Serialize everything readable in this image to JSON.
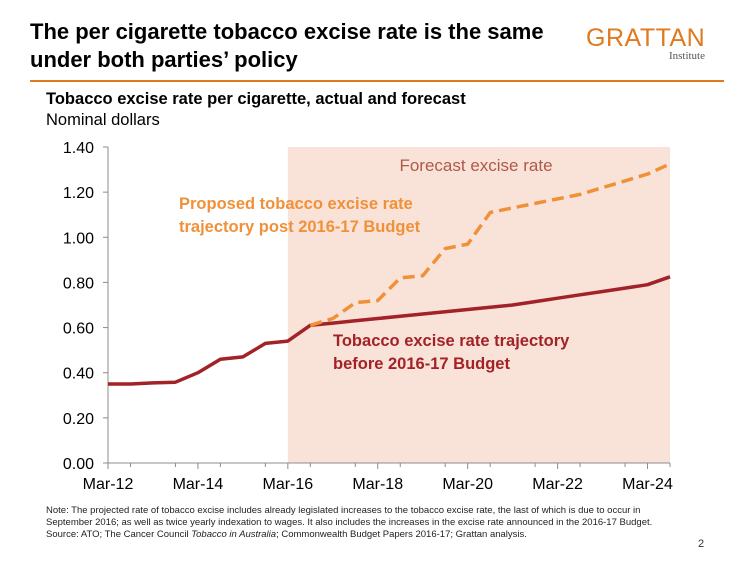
{
  "header": {
    "title": "The per cigarette tobacco excise rate is the same under both parties’ policy",
    "logo_main": "GRATTAN",
    "logo_sub": "Institute"
  },
  "chart_meta": {
    "subtitle": "Tobacco excise rate per cigarette, actual and forecast",
    "units": "Nominal dollars"
  },
  "chart_data": {
    "type": "line",
    "x_ticks": [
      "Mar-12",
      "Mar-14",
      "Mar-16",
      "Mar-18",
      "Mar-20",
      "Mar-22",
      "Mar-24"
    ],
    "xlim": [
      "Mar-12",
      "Sep-24"
    ],
    "ylim": [
      0,
      1.4
    ],
    "y_ticks": [
      "0.00",
      "0.20",
      "0.40",
      "0.60",
      "0.80",
      "1.00",
      "1.20",
      "1.40"
    ],
    "grid": false,
    "forecast_shading": {
      "from": "Mar-16",
      "to": "Sep-24",
      "label": "Forecast excise rate",
      "color": "#f9e3d8"
    },
    "series": [
      {
        "key": "before_budget",
        "label": "Tobacco excise rate trajectory before 2016-17 Budget",
        "color": "#a32228",
        "style": "solid",
        "points": [
          [
            "Mar-12",
            0.35
          ],
          [
            "Sep-12",
            0.35
          ],
          [
            "Mar-13",
            0.355
          ],
          [
            "Sep-13",
            0.358
          ],
          [
            "Mar-14",
            0.4
          ],
          [
            "Sep-14",
            0.46
          ],
          [
            "Mar-15",
            0.47
          ],
          [
            "Sep-15",
            0.53
          ],
          [
            "Mar-16",
            0.54
          ],
          [
            "Sep-16",
            0.61
          ],
          [
            "Mar-17",
            0.62
          ],
          [
            "Sep-17",
            0.63
          ],
          [
            "Mar-18",
            0.64
          ],
          [
            "Sep-18",
            0.65
          ],
          [
            "Mar-19",
            0.66
          ],
          [
            "Sep-19",
            0.67
          ],
          [
            "Mar-20",
            0.68
          ],
          [
            "Sep-20",
            0.69
          ],
          [
            "Mar-21",
            0.7
          ],
          [
            "Sep-21",
            0.715
          ],
          [
            "Mar-22",
            0.73
          ],
          [
            "Sep-22",
            0.745
          ],
          [
            "Mar-23",
            0.76
          ],
          [
            "Sep-23",
            0.775
          ],
          [
            "Mar-24",
            0.79
          ],
          [
            "Sep-24",
            0.825
          ]
        ]
      },
      {
        "key": "post_budget",
        "label": "Proposed tobacco excise rate trajectory post 2016-17 Budget",
        "color": "#f0913a",
        "style": "dashed",
        "points": [
          [
            "Sep-16",
            0.61
          ],
          [
            "Mar-17",
            0.64
          ],
          [
            "Sep-17",
            0.71
          ],
          [
            "Mar-18",
            0.72
          ],
          [
            "Sep-18",
            0.82
          ],
          [
            "Mar-19",
            0.83
          ],
          [
            "Sep-19",
            0.95
          ],
          [
            "Mar-20",
            0.97
          ],
          [
            "Sep-20",
            1.11
          ],
          [
            "Mar-21",
            1.13
          ],
          [
            "Sep-21",
            1.15
          ],
          [
            "Mar-22",
            1.17
          ],
          [
            "Sep-22",
            1.19
          ],
          [
            "Mar-23",
            1.22
          ],
          [
            "Sep-23",
            1.25
          ],
          [
            "Mar-24",
            1.28
          ],
          [
            "Sep-24",
            1.325
          ]
        ]
      }
    ]
  },
  "footer": {
    "note_lines": [
      "Note: The projected rate of tobacco excise includes already legislated increases to the tobacco excise rate, the last of which is due to occur in",
      "September 2016; as well as twice yearly indexation to wages. It also includes the increases in the excise rate announced in the 2016-17 Budget."
    ],
    "source_prefix": "Source: ATO; The Cancer Council ",
    "source_italic": "Tobacco in Australia",
    "source_suffix": "; Commonwealth Budget Papers 2016-17; Grattan analysis.",
    "page_number": "2"
  }
}
